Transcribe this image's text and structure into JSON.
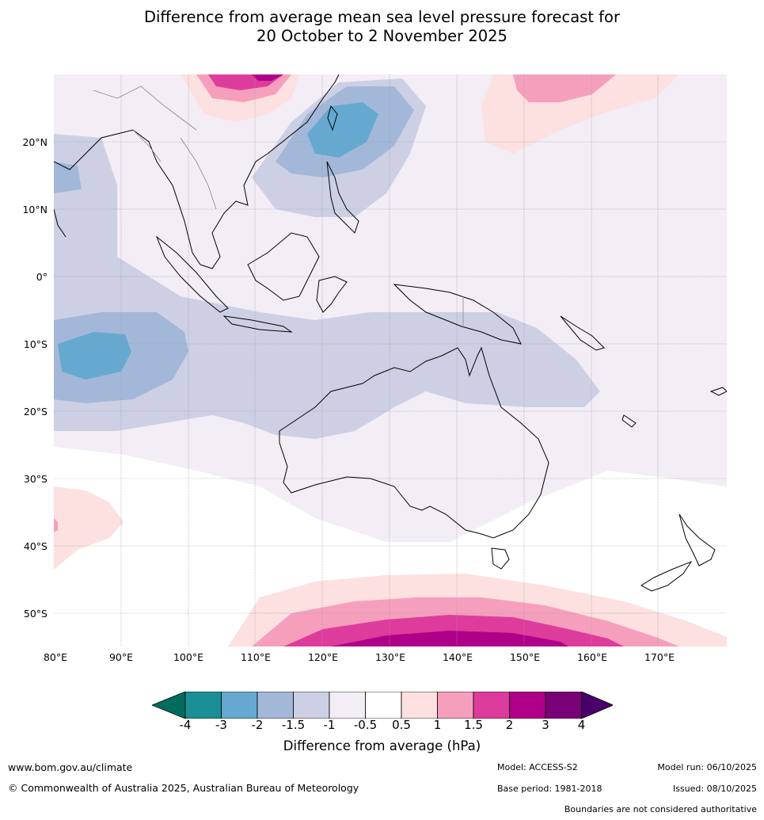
{
  "title": {
    "line1": "Difference from average mean sea level pressure forecast for",
    "line2": "20 October to 2 November 2025"
  },
  "map": {
    "lat_labels": [
      "20°N",
      "10°N",
      "0°",
      "10°S",
      "20°S",
      "30°S",
      "40°S",
      "50°S"
    ],
    "lon_labels": [
      "80°E",
      "90°E",
      "100°E",
      "110°E",
      "120°E",
      "130°E",
      "140°E",
      "150°E",
      "160°E",
      "170°E"
    ]
  },
  "colorbar": {
    "ticks": [
      "-4",
      "-3",
      "-2",
      "-1.5",
      "-1",
      "-0.5",
      "0.5",
      "1",
      "1.5",
      "2",
      "3",
      "4"
    ],
    "colors": [
      "#1a8f96",
      "#65a9d0",
      "#a3b8d8",
      "#cdd0e4",
      "#f3edf5",
      "#ffffff",
      "#fde0e0",
      "#f69fbd",
      "#de3c9c",
      "#b0008a",
      "#7a0078"
    ],
    "low_extend_color": "#006c5e",
    "high_extend_color": "#49006a",
    "label": "Difference from average (hPa)"
  },
  "footer": {
    "website": "www.bom.gov.au/climate",
    "copyright": "© Commonwealth of Australia 2025, Australian Bureau of Meteorology",
    "model": "Model: ACCESS-S2",
    "base_period": "Base period: 1981-2018",
    "model_run": "Model run: 06/10/2025",
    "issued": "Issued: 08/10/2025",
    "disclaimer": "Boundaries are not considered authoritative"
  }
}
